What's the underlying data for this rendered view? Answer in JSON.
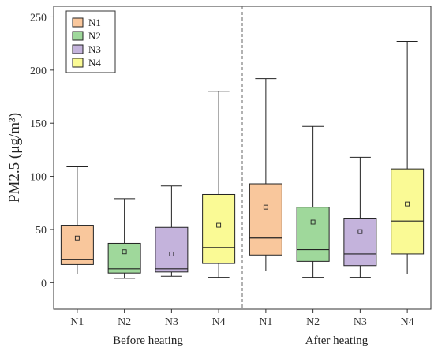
{
  "chart_data": {
    "type": "box",
    "ylabel": "PM2.5 (μg/m³)",
    "ylim": [
      -25,
      260
    ],
    "yticks": [
      0,
      50,
      100,
      150,
      200,
      250
    ],
    "group_labels": [
      "Before heating",
      "After heating"
    ],
    "categories": [
      "N1",
      "N2",
      "N3",
      "N4",
      "N1",
      "N2",
      "N3",
      "N4"
    ],
    "legend": {
      "placement": "top-left",
      "entries": [
        {
          "name": "N1",
          "color": "#f9c79c"
        },
        {
          "name": "N2",
          "color": "#9fd89b"
        },
        {
          "name": "N3",
          "color": "#c4b3dc"
        },
        {
          "name": "N4",
          "color": "#fafa95"
        }
      ]
    },
    "boxes": [
      {
        "group": "Before heating",
        "name": "N1",
        "min": 8,
        "q1": 17,
        "median": 22,
        "q3": 54,
        "max": 109,
        "mean": 42
      },
      {
        "group": "Before heating",
        "name": "N2",
        "min": 4,
        "q1": 9,
        "median": 13,
        "q3": 37,
        "max": 79,
        "mean": 29
      },
      {
        "group": "Before heating",
        "name": "N3",
        "min": 6,
        "q1": 10,
        "median": 13,
        "q3": 52,
        "max": 91,
        "mean": 27
      },
      {
        "group": "Before heating",
        "name": "N4",
        "min": 5,
        "q1": 18,
        "median": 33,
        "q3": 83,
        "max": 180,
        "mean": 54
      },
      {
        "group": "After heating",
        "name": "N1",
        "min": 11,
        "q1": 26,
        "median": 42,
        "q3": 93,
        "max": 192,
        "mean": 71
      },
      {
        "group": "After heating",
        "name": "N2",
        "min": 5,
        "q1": 20,
        "median": 31,
        "q3": 71,
        "max": 147,
        "mean": 57
      },
      {
        "group": "After heating",
        "name": "N3",
        "min": 5,
        "q1": 16,
        "median": 27,
        "q3": 60,
        "max": 118,
        "mean": 48
      },
      {
        "group": "After heating",
        "name": "N4",
        "min": 8,
        "q1": 27,
        "median": 58,
        "q3": 107,
        "max": 227,
        "mean": 74
      }
    ],
    "divider": "between groups",
    "grid": false
  }
}
